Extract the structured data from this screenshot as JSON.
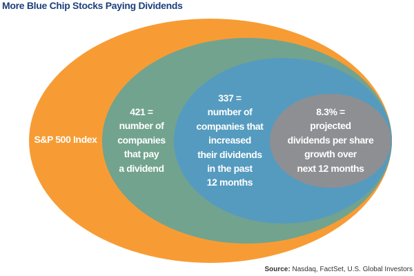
{
  "title": "More Blue Chip Stocks Paying Dividends",
  "colors": {
    "sp500": "#F79C34",
    "pay_dividend": "#72A38F",
    "increased": "#559BBF",
    "projected": "#8E8F93",
    "title": "#1D3F7C"
  },
  "sets": [
    {
      "label_lines": [
        "S&P 500 Index"
      ]
    },
    {
      "label_lines": [
        "421 =",
        "number of",
        "companies",
        "that pay",
        "a dividend"
      ]
    },
    {
      "label_lines": [
        "337 =",
        "number of",
        "companies that",
        "increased",
        "their dividends",
        "in the past",
        "12 months"
      ]
    },
    {
      "label_lines": [
        "8.3% =",
        "projected",
        "dividends per share",
        "growth over",
        "next 12 months"
      ]
    }
  ],
  "source": {
    "label": "Source:",
    "text": "Nasdaq, FactSet, U.S. Global Investors"
  }
}
